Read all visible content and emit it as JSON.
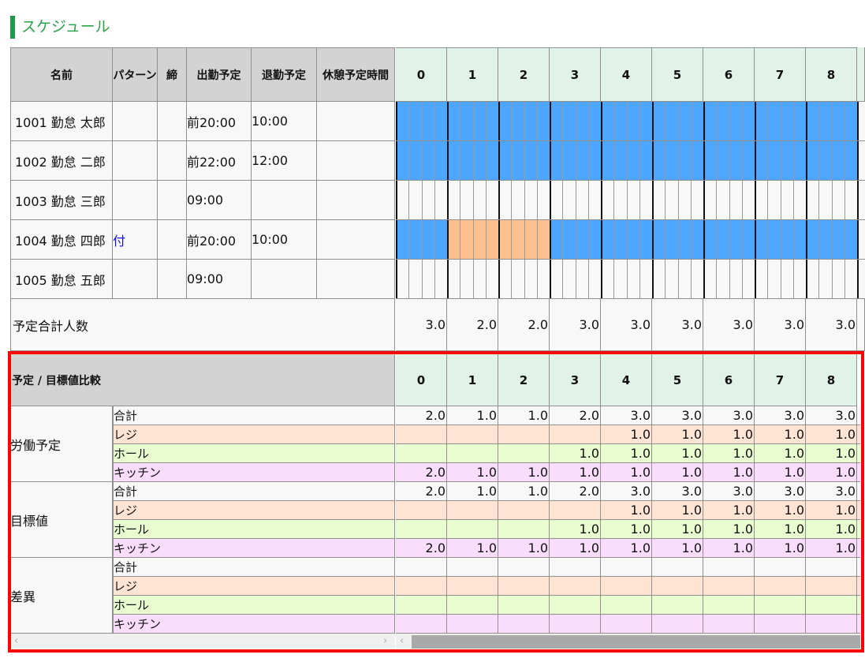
{
  "title": "スケジュール",
  "colors": {
    "accent": "#1a9c48",
    "work": "#4da6ff",
    "break": "#ffc090",
    "reji": "#ffe4d4",
    "hall": "#e8fcd0",
    "kitchen": "#fadcfc",
    "highlight": "#ff0000"
  },
  "schedule": {
    "headers": [
      "名前",
      "パターン",
      "締",
      "出勤予定",
      "退勤予定",
      "休憩予定時間"
    ],
    "hours": [
      "0",
      "1",
      "2",
      "3",
      "4",
      "5",
      "6",
      "7",
      "8"
    ],
    "rows": [
      {
        "name": "1001 勤怠 太郎",
        "pattern": "",
        "close": "",
        "start": "前20:00",
        "end": "10:00",
        "break": "",
        "bars": [
          "work",
          "work",
          "work",
          "work",
          "work",
          "work",
          "work",
          "work",
          "work"
        ]
      },
      {
        "name": "1002 勤怠 二郎",
        "pattern": "",
        "close": "",
        "start": "前22:00",
        "end": "12:00",
        "break": "",
        "bars": [
          "work",
          "work",
          "work",
          "work",
          "work",
          "work",
          "work",
          "work",
          "work"
        ]
      },
      {
        "name": "1003 勤怠 三郎",
        "pattern": "",
        "close": "",
        "start": "09:00",
        "end": "",
        "break": "",
        "bars": [
          "",
          "",
          "",
          "",
          "",
          "",
          "",
          "",
          ""
        ]
      },
      {
        "name": "1004 勤怠 四郎",
        "pattern": "付",
        "close": "",
        "start": "前20:00",
        "end": "10:00",
        "break": "",
        "bars": [
          "work",
          "break",
          "break",
          "work",
          "work",
          "work",
          "work",
          "work",
          "work"
        ]
      },
      {
        "name": "1005 勤怠 五郎",
        "pattern": "",
        "close": "",
        "start": "09:00",
        "end": "",
        "break": "",
        "bars": [
          "",
          "",
          "",
          "",
          "",
          "",
          "",
          "",
          ""
        ]
      }
    ],
    "total_label": "予定合計人数",
    "totals": [
      "3.0",
      "2.0",
      "2.0",
      "3.0",
      "3.0",
      "3.0",
      "3.0",
      "3.0",
      "3.0"
    ]
  },
  "comparison": {
    "header": "予定 / 目標値比較",
    "hours": [
      "0",
      "1",
      "2",
      "3",
      "4",
      "5",
      "6",
      "7",
      "8"
    ],
    "groups": [
      {
        "label": "労働予定",
        "rows": [
          {
            "label": "合計",
            "kind": "total",
            "values": [
              "2.0",
              "1.0",
              "1.0",
              "2.0",
              "3.0",
              "3.0",
              "3.0",
              "3.0",
              "3.0"
            ]
          },
          {
            "label": "レジ",
            "kind": "reji",
            "values": [
              "",
              "",
              "",
              "",
              "1.0",
              "1.0",
              "1.0",
              "1.0",
              "1.0"
            ]
          },
          {
            "label": "ホール",
            "kind": "hall",
            "values": [
              "",
              "",
              "",
              "1.0",
              "1.0",
              "1.0",
              "1.0",
              "1.0",
              "1.0"
            ]
          },
          {
            "label": "キッチン",
            "kind": "kitchen",
            "values": [
              "2.0",
              "1.0",
              "1.0",
              "1.0",
              "1.0",
              "1.0",
              "1.0",
              "1.0",
              "1.0"
            ]
          }
        ]
      },
      {
        "label": "目標値",
        "rows": [
          {
            "label": "合計",
            "kind": "total",
            "values": [
              "2.0",
              "1.0",
              "1.0",
              "2.0",
              "3.0",
              "3.0",
              "3.0",
              "3.0",
              "3.0"
            ]
          },
          {
            "label": "レジ",
            "kind": "reji",
            "values": [
              "",
              "",
              "",
              "",
              "1.0",
              "1.0",
              "1.0",
              "1.0",
              "1.0"
            ]
          },
          {
            "label": "ホール",
            "kind": "hall",
            "values": [
              "",
              "",
              "",
              "1.0",
              "1.0",
              "1.0",
              "1.0",
              "1.0",
              "1.0"
            ]
          },
          {
            "label": "キッチン",
            "kind": "kitchen",
            "values": [
              "2.0",
              "1.0",
              "1.0",
              "1.0",
              "1.0",
              "1.0",
              "1.0",
              "1.0",
              "1.0"
            ]
          }
        ]
      },
      {
        "label": "差異",
        "rows": [
          {
            "label": "合計",
            "kind": "total",
            "values": [
              "",
              "",
              "",
              "",
              "",
              "",
              "",
              "",
              ""
            ]
          },
          {
            "label": "レジ",
            "kind": "reji",
            "values": [
              "",
              "",
              "",
              "",
              "",
              "",
              "",
              "",
              ""
            ]
          },
          {
            "label": "ホール",
            "kind": "hall",
            "values": [
              "",
              "",
              "",
              "",
              "",
              "",
              "",
              "",
              ""
            ]
          },
          {
            "label": "キッチン",
            "kind": "kitchen",
            "values": [
              "",
              "",
              "",
              "",
              "",
              "",
              "",
              "",
              ""
            ]
          }
        ]
      }
    ]
  }
}
